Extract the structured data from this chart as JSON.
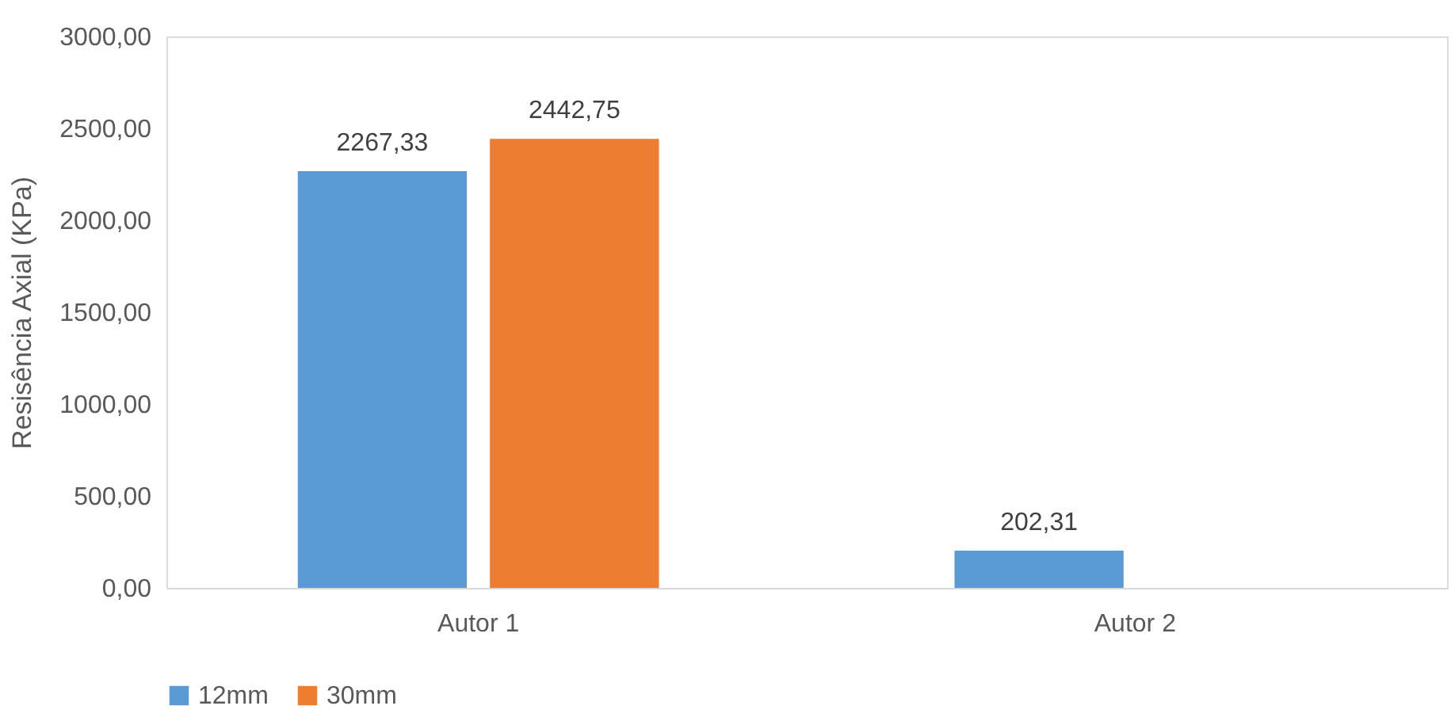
{
  "chart_data": {
    "type": "bar",
    "ylabel": "Resisência Axial (KPa)",
    "categories": [
      "Autor 1",
      "Autor 2"
    ],
    "series": [
      {
        "name": "12mm",
        "color": "#5b9bd5",
        "values": [
          2267.33,
          202.31
        ],
        "value_labels": [
          "2267,33",
          "202,31"
        ]
      },
      {
        "name": "30mm",
        "color": "#ed7d31",
        "values": [
          2442.75,
          null
        ],
        "value_labels": [
          "2442,75",
          null
        ]
      }
    ],
    "ylim": [
      0,
      3000
    ],
    "yticks": [
      {
        "value": 0,
        "label": "0,00"
      },
      {
        "value": 500,
        "label": "500,00"
      },
      {
        "value": 1000,
        "label": "1000,00"
      },
      {
        "value": 1500,
        "label": "1500,00"
      },
      {
        "value": 2000,
        "label": "2000,00"
      },
      {
        "value": 2500,
        "label": "2500,00"
      },
      {
        "value": 3000,
        "label": "3000,00"
      }
    ],
    "grid": false,
    "legend": "bottom"
  }
}
